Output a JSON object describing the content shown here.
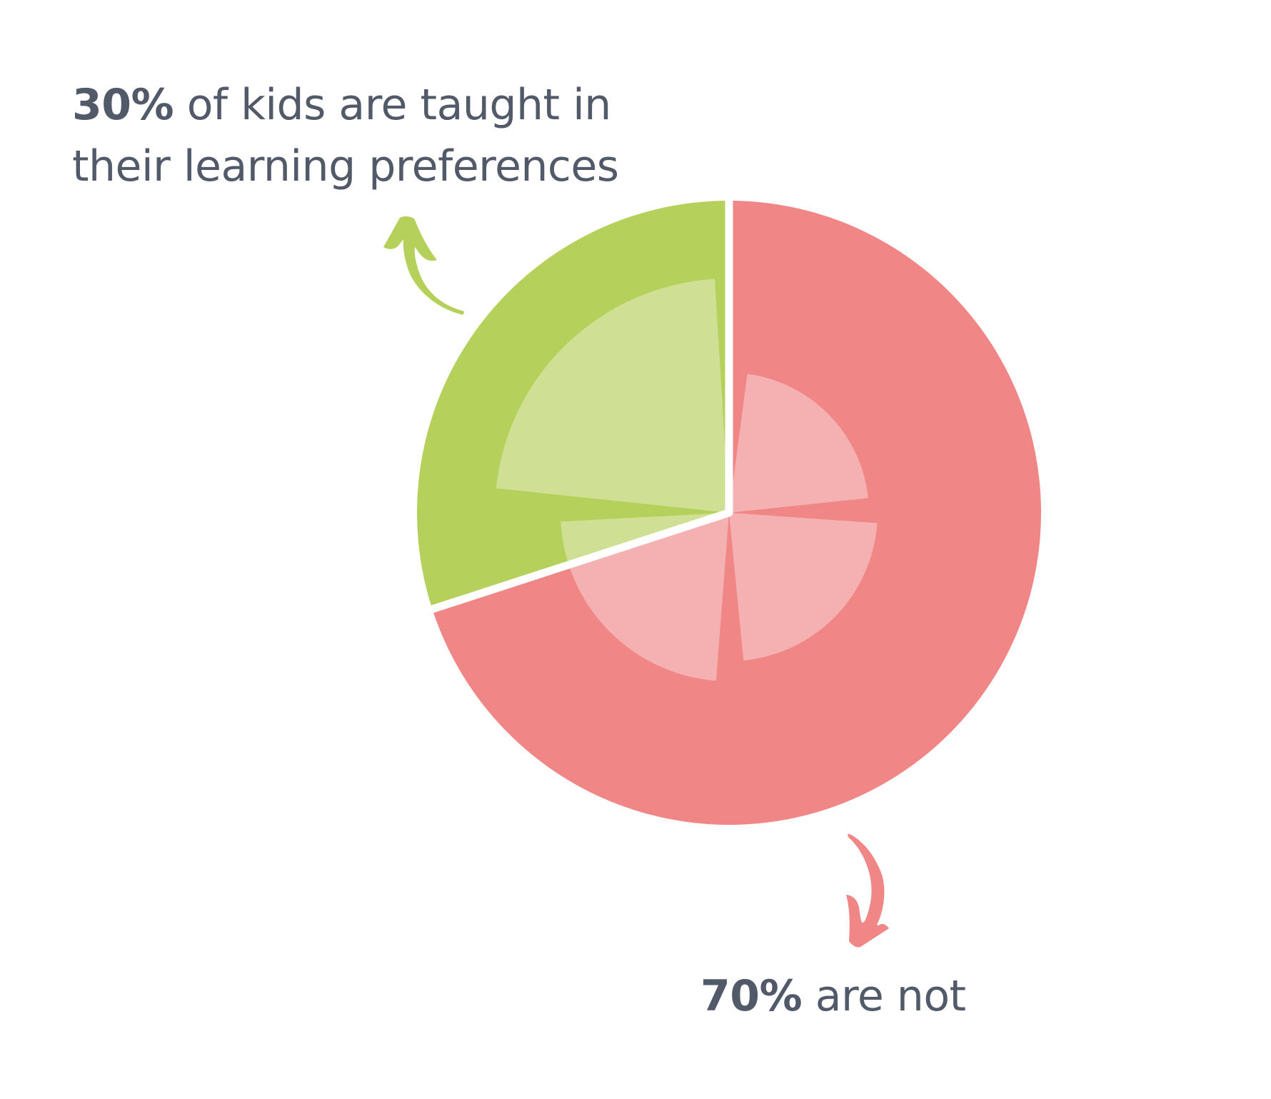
{
  "captions": {
    "top": {
      "bold": "30%",
      "rest_line1": " of kids are taught in",
      "rest_line2": "their learning preferences"
    },
    "bottom": {
      "bold": "70%",
      "rest": " are not"
    }
  },
  "colors": {
    "text": "#525a6a",
    "green": "#b5d15b",
    "green_light": "#cfe095",
    "red": "#f08686",
    "red_light": "#f5b1b1",
    "separator": "#ffffff"
  },
  "chart_data": {
    "type": "pie",
    "title": "",
    "categories": [
      "Taught in their learning preferences",
      "Not taught in their learning preferences"
    ],
    "values": [
      30,
      70
    ],
    "labels": [
      "30% of kids are taught in their learning preferences",
      "70% are not"
    ],
    "center": [
      1021,
      718
    ],
    "radius": 437,
    "outer_segments": [
      {
        "name": "taught",
        "percent": 30,
        "start_deg": 252,
        "end_deg": 360,
        "color": "#b5d15b"
      },
      {
        "name": "not-taught",
        "percent": 70,
        "start_deg": 0,
        "end_deg": 252,
        "color": "#f08686"
      }
    ],
    "inner_wedges": [
      {
        "group": "taught",
        "start_deg": 276,
        "end_deg": 356.5,
        "radius": 328,
        "color": "#cfe095"
      },
      {
        "group": "taught",
        "start_deg": 250,
        "end_deg": 267,
        "radius": 236,
        "color": "#cfe095"
      },
      {
        "group": "not-taught",
        "start_deg": 7.5,
        "end_deg": 84,
        "radius": 196,
        "color": "#f5b1b1"
      },
      {
        "group": "not-taught",
        "start_deg": 94,
        "end_deg": 174.4,
        "radius": 208,
        "color": "#f5b1b1"
      },
      {
        "group": "not-taught",
        "start_deg": 184.4,
        "end_deg": 252,
        "radius": 236,
        "color": "#f5b1b1"
      }
    ],
    "separators_deg": [
      0,
      252
    ],
    "legend": "none",
    "annotations": [
      {
        "text": "30%",
        "arrow": "up-left",
        "color": "#b5d15b"
      },
      {
        "text": "70%",
        "arrow": "down",
        "color": "#f08686"
      }
    ]
  }
}
